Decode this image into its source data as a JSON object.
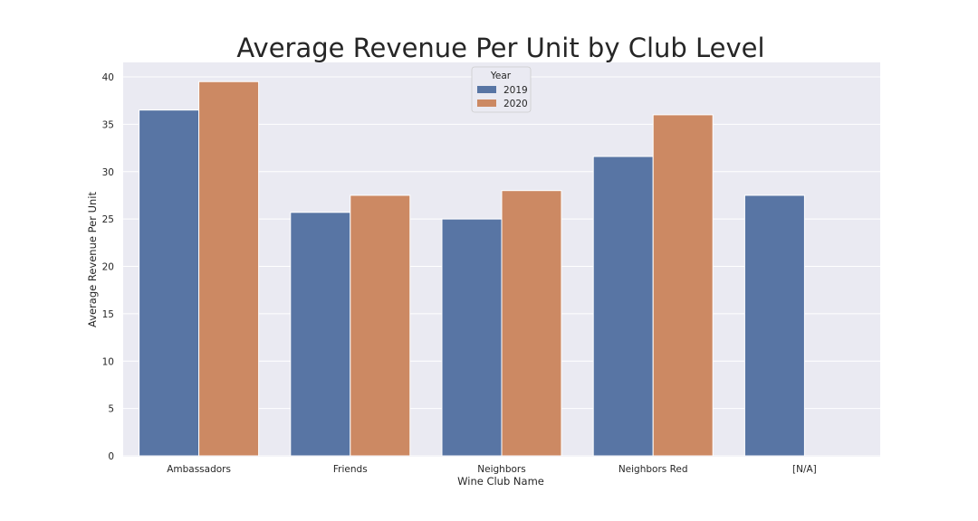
{
  "chart_data": {
    "type": "bar",
    "title": "Average Revenue Per Unit by Club Level",
    "xlabel": "Wine Club Name",
    "ylabel": "Average Revenue Per Unit",
    "categories": [
      "Ambassadors",
      "Friends",
      "Neighbors",
      "Neighbors Red",
      "[N/A]"
    ],
    "series": [
      {
        "name": "2019",
        "color": "#5875a4",
        "values": [
          36.5,
          25.7,
          25.0,
          31.6,
          27.5
        ]
      },
      {
        "name": "2020",
        "color": "#cc8963",
        "values": [
          39.5,
          27.5,
          28.0,
          36.0,
          null
        ]
      }
    ],
    "ylim": [
      0,
      41
    ],
    "yticks": [
      0,
      5,
      10,
      15,
      20,
      25,
      30,
      35,
      40
    ],
    "legend": {
      "title": "Year",
      "position": "top-center"
    },
    "grid": true,
    "background": "#eaeaf2",
    "grid_color": "#ffffff"
  }
}
